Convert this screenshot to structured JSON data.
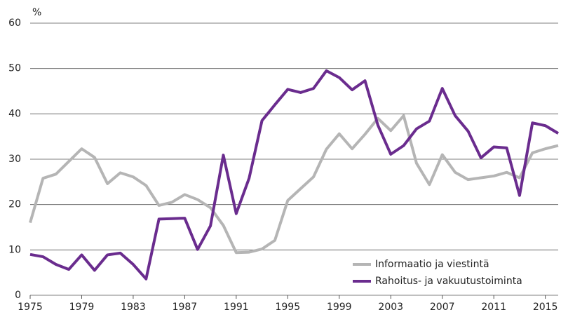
{
  "chart_data": {
    "type": "line",
    "y_label": "%",
    "x": [
      1975,
      1976,
      1977,
      1978,
      1979,
      1980,
      1981,
      1982,
      1983,
      1984,
      1985,
      1986,
      1987,
      1988,
      1989,
      1990,
      1991,
      1992,
      1993,
      1994,
      1995,
      1996,
      1997,
      1998,
      1999,
      2000,
      2001,
      2002,
      2003,
      2004,
      2005,
      2006,
      2007,
      2008,
      2009,
      2010,
      2011,
      2012,
      2013,
      2014,
      2015,
      2016
    ],
    "series": [
      {
        "name": "Informaatio ja viestintä",
        "color": "#b5b5b5",
        "values": [
          16,
          25.8,
          26.7,
          29.5,
          32.3,
          30.4,
          24.6,
          27,
          26.1,
          24.2,
          19.8,
          20.5,
          22.2,
          21.1,
          19.3,
          15.4,
          9.4,
          9.5,
          10.2,
          12.1,
          20.9,
          23.5,
          26.1,
          32.2,
          35.6,
          32.3,
          35.5,
          39,
          36.3,
          39.6,
          29.1,
          24.4,
          31,
          27.1,
          25.5,
          25.9,
          26.3,
          27.1,
          25.9,
          31.4,
          32.3,
          33
        ]
      },
      {
        "name": "Rahoitus- ja vakuutustoiminta",
        "color": "#6a2c8e",
        "values": [
          9,
          8.5,
          6.8,
          5.7,
          8.9,
          5.5,
          8.9,
          9.3,
          6.8,
          3.6,
          16.8,
          16.9,
          17,
          10.1,
          15.3,
          30.9,
          18,
          25.8,
          38.5,
          42,
          45.4,
          44.7,
          45.6,
          49.5,
          48,
          45.3,
          47.3,
          37.5,
          31.1,
          33,
          36.7,
          38.4,
          45.6,
          39.6,
          36.2,
          30.3,
          32.7,
          32.5,
          22,
          38,
          37.4,
          35.7
        ]
      }
    ],
    "xlim": [
      1975,
      2016
    ],
    "xticks": [
      1975,
      1979,
      1983,
      1987,
      1991,
      1995,
      1999,
      2003,
      2007,
      2011,
      2015
    ],
    "ylim": [
      0,
      60
    ],
    "yticks": [
      0,
      10,
      20,
      30,
      40,
      50,
      60
    ],
    "grid": true,
    "legend": "lower right"
  }
}
